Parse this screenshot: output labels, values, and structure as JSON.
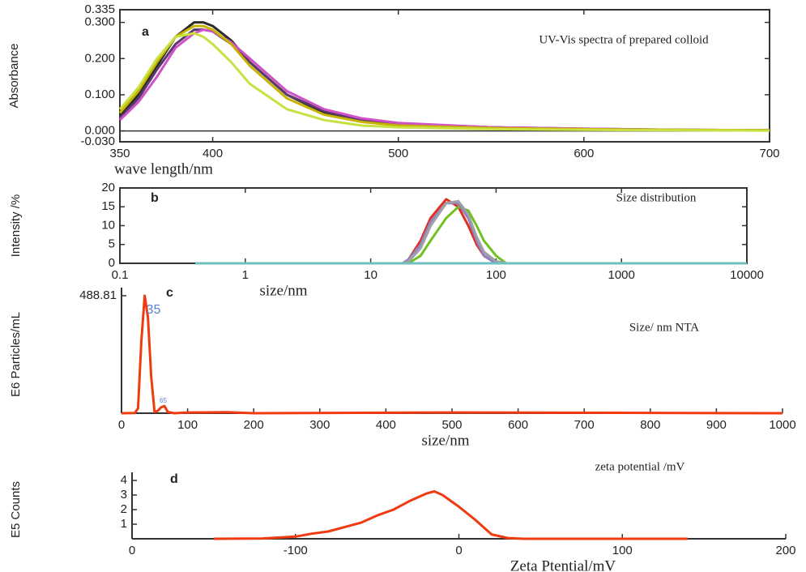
{
  "chart_data": [
    {
      "type": "line",
      "label": "a",
      "title": "UV-Vis spectra of prepared colloid",
      "xlabel": "wave length/nm",
      "ylabel": "Absorbance",
      "frame": true,
      "x": [
        350,
        360,
        370,
        380,
        390,
        395,
        400,
        410,
        420,
        440,
        460,
        480,
        500,
        550,
        600,
        650,
        700
      ],
      "series": [
        {
          "color": "#2a2a2a",
          "values": [
            0.04,
            0.1,
            0.18,
            0.26,
            0.3,
            0.3,
            0.29,
            0.25,
            0.19,
            0.1,
            0.05,
            0.03,
            0.02,
            0.01,
            0.005,
            0.003,
            0.002
          ]
        },
        {
          "color": "#5a3a6a",
          "values": [
            0.035,
            0.09,
            0.17,
            0.24,
            0.28,
            0.28,
            0.275,
            0.24,
            0.19,
            0.1,
            0.055,
            0.03,
            0.02,
            0.01,
            0.006,
            0.003,
            0.002
          ]
        },
        {
          "color": "#d050c8",
          "values": [
            0.03,
            0.08,
            0.15,
            0.23,
            0.27,
            0.28,
            0.275,
            0.245,
            0.2,
            0.11,
            0.06,
            0.035,
            0.022,
            0.01,
            0.006,
            0.003,
            0.002
          ]
        },
        {
          "color": "#c8b400",
          "values": [
            0.05,
            0.11,
            0.19,
            0.26,
            0.29,
            0.29,
            0.28,
            0.24,
            0.18,
            0.09,
            0.045,
            0.025,
            0.015,
            0.008,
            0.005,
            0.003,
            0.002
          ]
        },
        {
          "color": "#c8e040",
          "values": [
            0.06,
            0.12,
            0.2,
            0.26,
            0.27,
            0.26,
            0.24,
            0.19,
            0.13,
            0.06,
            0.03,
            0.015,
            0.01,
            0.005,
            0.003,
            0.002,
            0.001
          ]
        }
      ],
      "xlim": [
        350,
        700
      ],
      "xticks": [
        350,
        400,
        500,
        600,
        700
      ],
      "ylim": [
        -0.03,
        0.335
      ],
      "yticks": [
        {
          "value": 0.335,
          "label": "0.335"
        },
        {
          "value": 0.3,
          "label": "0.300"
        },
        {
          "value": 0.2,
          "label": "0.200"
        },
        {
          "value": 0.1,
          "label": "0.100"
        },
        {
          "value": 0,
          "label": "0.000"
        },
        {
          "value": -0.03,
          "label": "-0.030"
        }
      ]
    },
    {
      "type": "line",
      "label": "b",
      "title": "Size distribution",
      "xlabel": "size/nm",
      "ylabel": "Intensity /%",
      "frame": true,
      "log_x": true,
      "x": [
        0.4,
        10,
        18,
        20,
        25,
        30,
        40,
        50,
        60,
        70,
        80,
        100,
        120,
        150,
        10000
      ],
      "series": [
        {
          "color": "#e03020",
          "values": [
            0,
            0,
            0,
            1,
            6,
            12,
            17,
            15,
            10,
            5,
            2,
            0,
            0,
            0,
            0
          ]
        },
        {
          "color": "#404050",
          "values": [
            0,
            0,
            0,
            0.5,
            4,
            10,
            16,
            16,
            12,
            7,
            3,
            0.5,
            0,
            0,
            0
          ]
        },
        {
          "color": "#70c020",
          "values": [
            0,
            0,
            0,
            0,
            2,
            6,
            12,
            15,
            14,
            10,
            6,
            2,
            0,
            0,
            0
          ]
        },
        {
          "color": "#9080c0",
          "values": [
            0,
            0,
            0,
            1,
            5,
            11,
            16,
            16,
            12,
            6,
            2,
            0,
            0,
            0,
            0
          ]
        },
        {
          "color": "#a0a0a8",
          "values": [
            0,
            0,
            0,
            0.5,
            4,
            10,
            16,
            16.5,
            13,
            7,
            3,
            0.5,
            0,
            0,
            0
          ]
        },
        {
          "color": "#70c0c0",
          "values": [
            0,
            0,
            0,
            0,
            0,
            0,
            0,
            0,
            0,
            0,
            0,
            0,
            0,
            0,
            0
          ]
        }
      ],
      "xlim": [
        0.1,
        10000
      ],
      "xticks": [
        0.1,
        1,
        10,
        100,
        1000,
        10000
      ],
      "ylim": [
        0,
        20
      ],
      "yticks": [
        0,
        5,
        10,
        15,
        20
      ]
    },
    {
      "type": "line",
      "label": "c",
      "title": "Size/ nm  NTA",
      "xlabel": "size/nm",
      "ylabel": "E6 Particles/mL",
      "frame": false,
      "x": [
        0,
        20,
        25,
        30,
        35,
        40,
        45,
        50,
        55,
        60,
        65,
        70,
        80,
        100,
        160,
        200,
        500,
        1000
      ],
      "series": [
        {
          "color": "#f03a10",
          "values": [
            0,
            1,
            20,
            300,
            488.81,
            400,
            150,
            5,
            10,
            25,
            30,
            5,
            0,
            3,
            4,
            0,
            3,
            0
          ]
        }
      ],
      "annotations": [
        {
          "text": "35",
          "x": 35
        },
        {
          "text": "65",
          "x": 65
        }
      ],
      "xlim": [
        0,
        1000
      ],
      "xticks": [
        0,
        100,
        200,
        300,
        400,
        500,
        600,
        700,
        800,
        900,
        1000
      ],
      "ylim": [
        0,
        488.81
      ],
      "yticks": [
        488.81
      ]
    },
    {
      "type": "line",
      "label": "d",
      "title": "zeta potential /mV",
      "xlabel": "Zeta Ptential/mV",
      "ylabel": "E5 Counts",
      "frame": false,
      "x": [
        -150,
        -120,
        -100,
        -90,
        -80,
        -60,
        -50,
        -40,
        -30,
        -20,
        -15,
        -10,
        0,
        10,
        20,
        30,
        40,
        140
      ],
      "series": [
        {
          "color": "#f03a10",
          "values": [
            0,
            0.02,
            0.15,
            0.35,
            0.5,
            1.1,
            1.6,
            2.0,
            2.6,
            3.1,
            3.25,
            3.0,
            2.2,
            1.3,
            0.3,
            0.05,
            0,
            0
          ]
        }
      ],
      "xlim": [
        -200,
        200
      ],
      "xticks": [
        {
          "value": -200,
          "label": "0"
        },
        -100,
        0,
        100,
        200
      ],
      "ylim": [
        0,
        4
      ],
      "yticks": [
        1,
        2,
        3,
        4
      ]
    }
  ]
}
